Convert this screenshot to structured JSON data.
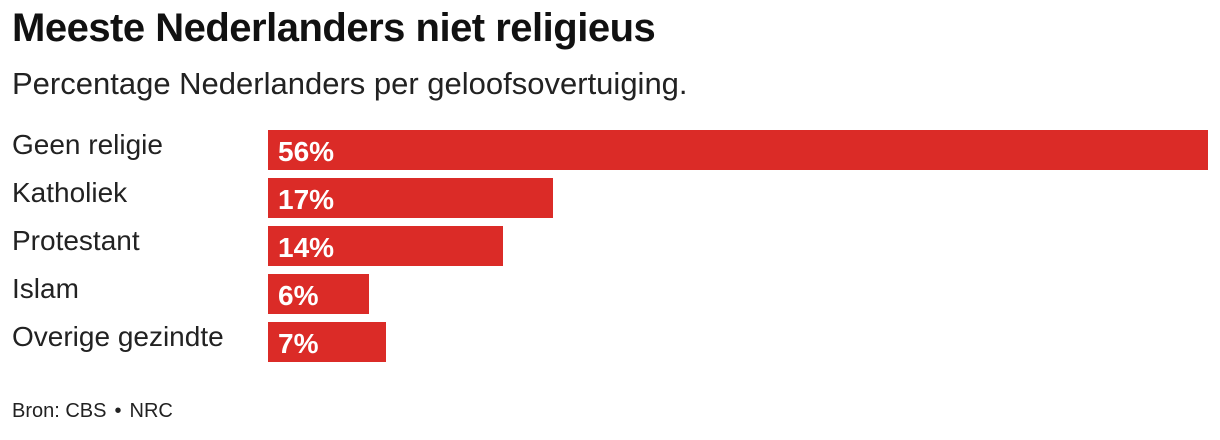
{
  "title": "Meeste Nederlanders niet religieus",
  "subtitle": "Percentage Nederlanders per geloofsovertuiging.",
  "source": {
    "prefix": "Bron: CBS",
    "separator": "•",
    "publisher": "NRC"
  },
  "colors": {
    "bar": "#db2b27"
  },
  "chart_data": {
    "type": "bar",
    "orientation": "horizontal",
    "categories": [
      "Geen religie",
      "Katholiek",
      "Protestant",
      "Islam",
      "Overige gezindte"
    ],
    "values": [
      56,
      17,
      14,
      6,
      7
    ],
    "value_labels": [
      "56%",
      "17%",
      "14%",
      "6%",
      "7%"
    ],
    "xlim": [
      0,
      56
    ],
    "grid": false,
    "legend": "none",
    "title": "Meeste Nederlanders niet religieus",
    "subtitle": "Percentage Nederlanders per geloofsovertuiging."
  }
}
